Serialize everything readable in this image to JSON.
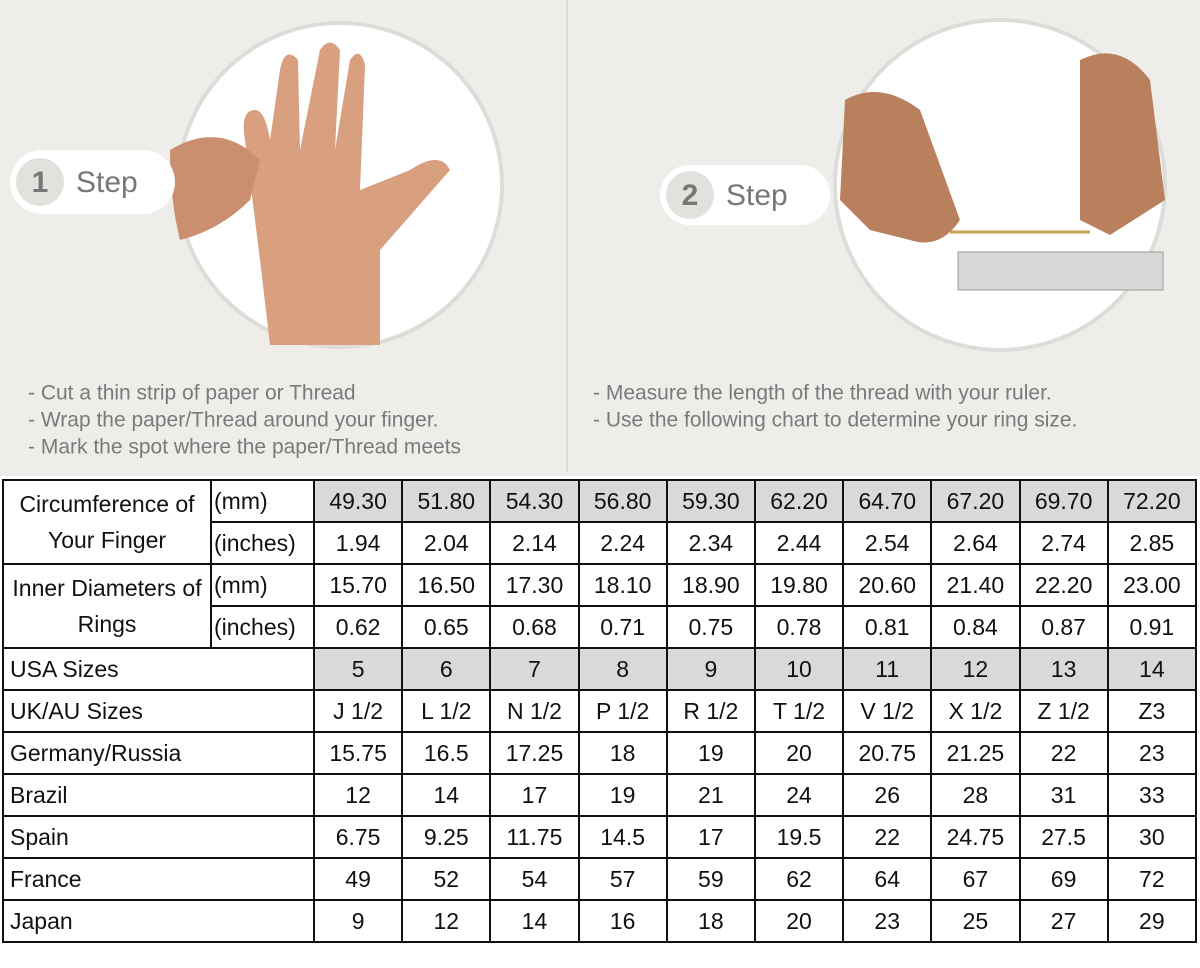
{
  "steps": [
    {
      "number": "1",
      "label": "Step",
      "instructions": [
        "-  Cut a thin strip of paper or Thread",
        "-  Wrap the paper/Thread around your finger.",
        "-  Mark the spot where the paper/Thread meets"
      ]
    },
    {
      "number": "2",
      "label": "Step",
      "instructions": [
        "-  Measure the length of the thread with your ruler.",
        "-  Use the following chart to determine your ring size."
      ]
    }
  ],
  "table": {
    "groups": [
      {
        "label": "Circumference of Your Finger",
        "rows": [
          {
            "unit": "(mm)",
            "values": [
              "49.30",
              "51.80",
              "54.30",
              "56.80",
              "59.30",
              "62.20",
              "64.70",
              "67.20",
              "69.70",
              "72.20"
            ]
          },
          {
            "unit": "(inches)",
            "values": [
              "1.94",
              "2.04",
              "2.14",
              "2.24",
              "2.34",
              "2.44",
              "2.54",
              "2.64",
              "2.74",
              "2.85"
            ]
          }
        ]
      },
      {
        "label": "Inner Diameters of Rings",
        "rows": [
          {
            "unit": "(mm)",
            "values": [
              "15.70",
              "16.50",
              "17.30",
              "18.10",
              "18.90",
              "19.80",
              "20.60",
              "21.40",
              "22.20",
              "23.00"
            ]
          },
          {
            "unit": "(inches)",
            "values": [
              "0.62",
              "0.65",
              "0.68",
              "0.71",
              "0.75",
              "0.78",
              "0.81",
              "0.84",
              "0.87",
              "0.91"
            ]
          }
        ]
      }
    ],
    "rows": [
      {
        "label": "USA Sizes",
        "values": [
          "5",
          "6",
          "7",
          "8",
          "9",
          "10",
          "11",
          "12",
          "13",
          "14"
        ]
      },
      {
        "label": "UK/AU Sizes",
        "values": [
          "J 1/2",
          "L 1/2",
          "N 1/2",
          "P 1/2",
          "R 1/2",
          "T 1/2",
          "V 1/2",
          "X 1/2",
          "Z 1/2",
          "Z3"
        ]
      },
      {
        "label": "Germany/Russia",
        "values": [
          "15.75",
          "16.5",
          "17.25",
          "18",
          "19",
          "20",
          "20.75",
          "21.25",
          "22",
          "23"
        ]
      },
      {
        "label": "Brazil",
        "values": [
          "12",
          "14",
          "17",
          "19",
          "21",
          "24",
          "26",
          "28",
          "31",
          "33"
        ]
      },
      {
        "label": "Spain",
        "values": [
          "6.75",
          "9.25",
          "11.75",
          "14.5",
          "17",
          "19.5",
          "22",
          "24.75",
          "27.5",
          "30"
        ]
      },
      {
        "label": "France",
        "values": [
          "49",
          "52",
          "54",
          "57",
          "59",
          "62",
          "64",
          "67",
          "69",
          "72"
        ]
      },
      {
        "label": "Japan",
        "values": [
          "9",
          "12",
          "14",
          "16",
          "18",
          "20",
          "23",
          "25",
          "27",
          "29"
        ]
      }
    ]
  }
}
